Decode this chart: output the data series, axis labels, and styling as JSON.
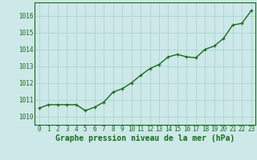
{
  "hours": [
    0,
    1,
    2,
    3,
    4,
    5,
    6,
    7,
    8,
    9,
    10,
    11,
    12,
    13,
    14,
    15,
    16,
    17,
    18,
    19,
    20,
    21,
    22,
    23
  ],
  "pressure": [
    1010.5,
    1010.7,
    1010.7,
    1010.7,
    1010.7,
    1010.35,
    1010.55,
    1010.85,
    1011.45,
    1011.65,
    1012.0,
    1012.45,
    1012.85,
    1013.1,
    1013.55,
    1013.7,
    1013.55,
    1013.5,
    1014.0,
    1014.2,
    1014.65,
    1015.45,
    1015.55,
    1016.3
  ],
  "line_color": "#1a6b1a",
  "marker": "+",
  "bg_color": "#cce8e8",
  "grid_color": "#aacece",
  "xlabel": "Graphe pression niveau de la mer (hPa)",
  "xlabel_color": "#1a6b1a",
  "tick_color": "#1a6b1a",
  "ylim": [
    1009.5,
    1016.8
  ],
  "yticks": [
    1010,
    1011,
    1012,
    1013,
    1014,
    1015,
    1016
  ],
  "xticks": [
    0,
    1,
    2,
    3,
    4,
    5,
    6,
    7,
    8,
    9,
    10,
    11,
    12,
    13,
    14,
    15,
    16,
    17,
    18,
    19,
    20,
    21,
    22,
    23
  ],
  "xlabel_fontsize": 7.0,
  "tick_fontsize": 5.5,
  "linewidth": 1.0,
  "markersize": 3.5
}
